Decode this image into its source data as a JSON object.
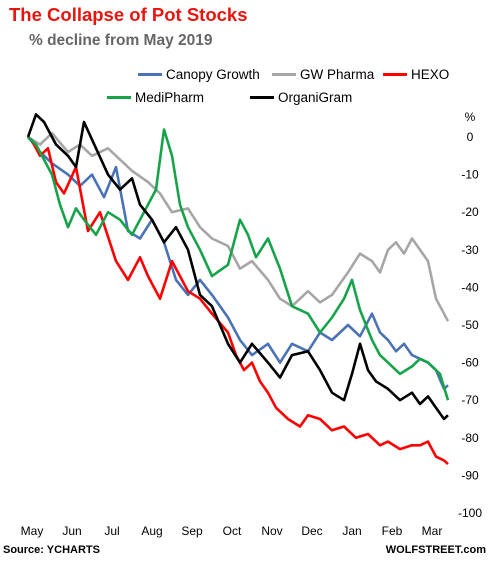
{
  "title": "The Collapse of Pot Stocks",
  "subtitle": "% decline from May 2019",
  "source": "Source: YCHARTS",
  "site": "WOLFSTREET.com",
  "y_unit_label": "%",
  "chart_data": {
    "type": "line",
    "title": "The Collapse of Pot Stocks",
    "subtitle": "% decline from May 2019",
    "xlabel": "",
    "ylabel": "%",
    "ylim": [
      -100,
      0
    ],
    "yticks": [
      0,
      -10,
      -20,
      -30,
      -40,
      -50,
      -60,
      -70,
      -80,
      -90,
      -100
    ],
    "xticks": [
      "May",
      "Jun",
      "Jul",
      "Aug",
      "Sep",
      "Oct",
      "Nov",
      "Dec",
      "Jan",
      "Feb",
      "Mar"
    ],
    "xlim": [
      0,
      10.6
    ],
    "grid": false,
    "legend_placement": "top",
    "series": [
      {
        "name": "Canopy Growth",
        "color": "#4a73b5",
        "points": [
          [
            0,
            0
          ],
          [
            0.3,
            -4
          ],
          [
            0.6,
            -7
          ],
          [
            1,
            -10
          ],
          [
            1.3,
            -13
          ],
          [
            1.6,
            -10
          ],
          [
            1.9,
            -16
          ],
          [
            2.2,
            -8
          ],
          [
            2.5,
            -25
          ],
          [
            2.8,
            -27
          ],
          [
            3.1,
            -22
          ],
          [
            3.4,
            -28
          ],
          [
            3.7,
            -38
          ],
          [
            4,
            -42
          ],
          [
            4.3,
            -38
          ],
          [
            4.6,
            -42
          ],
          [
            5,
            -48
          ],
          [
            5.3,
            -54
          ],
          [
            5.6,
            -58
          ],
          [
            6,
            -55
          ],
          [
            6.3,
            -60
          ],
          [
            6.6,
            -55
          ],
          [
            7,
            -57
          ],
          [
            7.3,
            -52
          ],
          [
            7.6,
            -54
          ],
          [
            8,
            -50
          ],
          [
            8.3,
            -53
          ],
          [
            8.6,
            -47
          ],
          [
            8.8,
            -52
          ],
          [
            9,
            -54
          ],
          [
            9.2,
            -57
          ],
          [
            9.4,
            -55
          ],
          [
            9.6,
            -58
          ],
          [
            9.8,
            -59
          ],
          [
            10,
            -60
          ],
          [
            10.2,
            -62
          ],
          [
            10.4,
            -67
          ],
          [
            10.5,
            -66
          ]
        ]
      },
      {
        "name": "GW Pharma",
        "color": "#a6a6a6",
        "points": [
          [
            0,
            0
          ],
          [
            0.3,
            -2
          ],
          [
            0.6,
            1
          ],
          [
            1,
            -4
          ],
          [
            1.3,
            -2
          ],
          [
            1.6,
            -5
          ],
          [
            2,
            -3
          ],
          [
            2.3,
            -6
          ],
          [
            2.6,
            -9
          ],
          [
            3,
            -12
          ],
          [
            3.3,
            -15
          ],
          [
            3.6,
            -20
          ],
          [
            4,
            -19
          ],
          [
            4.3,
            -24
          ],
          [
            4.6,
            -27
          ],
          [
            5,
            -29
          ],
          [
            5.3,
            -35
          ],
          [
            5.6,
            -33
          ],
          [
            6,
            -38
          ],
          [
            6.3,
            -43
          ],
          [
            6.6,
            -45
          ],
          [
            7,
            -41
          ],
          [
            7.3,
            -44
          ],
          [
            7.6,
            -42
          ],
          [
            8,
            -36
          ],
          [
            8.3,
            -31
          ],
          [
            8.6,
            -33
          ],
          [
            8.8,
            -36
          ],
          [
            9,
            -30
          ],
          [
            9.2,
            -28
          ],
          [
            9.4,
            -31
          ],
          [
            9.6,
            -27
          ],
          [
            9.8,
            -30
          ],
          [
            10,
            -33
          ],
          [
            10.2,
            -43
          ],
          [
            10.4,
            -47
          ],
          [
            10.5,
            -49
          ]
        ]
      },
      {
        "name": "HEXO",
        "color": "#ff0000",
        "points": [
          [
            0,
            0
          ],
          [
            0.1,
            -1
          ],
          [
            0.3,
            -5
          ],
          [
            0.5,
            -3
          ],
          [
            0.7,
            -12
          ],
          [
            0.9,
            -15
          ],
          [
            1.2,
            -8
          ],
          [
            1.5,
            -25
          ],
          [
            1.8,
            -20
          ],
          [
            2.2,
            -33
          ],
          [
            2.5,
            -38
          ],
          [
            2.8,
            -32
          ],
          [
            3,
            -37
          ],
          [
            3.3,
            -43
          ],
          [
            3.6,
            -33
          ],
          [
            4,
            -41
          ],
          [
            4.3,
            -43
          ],
          [
            4.6,
            -47
          ],
          [
            5,
            -52
          ],
          [
            5.2,
            -58
          ],
          [
            5.4,
            -62
          ],
          [
            5.6,
            -60
          ],
          [
            5.8,
            -65
          ],
          [
            6,
            -68
          ],
          [
            6.2,
            -72
          ],
          [
            6.5,
            -75
          ],
          [
            6.8,
            -77
          ],
          [
            7,
            -74
          ],
          [
            7.3,
            -75
          ],
          [
            7.6,
            -78
          ],
          [
            7.9,
            -77
          ],
          [
            8.2,
            -80
          ],
          [
            8.5,
            -79
          ],
          [
            8.8,
            -82
          ],
          [
            9,
            -81
          ],
          [
            9.3,
            -83
          ],
          [
            9.6,
            -82
          ],
          [
            9.8,
            -82
          ],
          [
            10,
            -81
          ],
          [
            10.2,
            -85
          ],
          [
            10.4,
            -86
          ],
          [
            10.5,
            -87
          ]
        ]
      },
      {
        "name": "MediPharm",
        "color": "#16a34a",
        "points": [
          [
            0,
            0
          ],
          [
            0.2,
            -2
          ],
          [
            0.4,
            -6
          ],
          [
            0.6,
            -10
          ],
          [
            0.8,
            -18
          ],
          [
            1,
            -24
          ],
          [
            1.2,
            -19
          ],
          [
            1.4,
            -22
          ],
          [
            1.7,
            -26
          ],
          [
            2,
            -20
          ],
          [
            2.3,
            -22
          ],
          [
            2.6,
            -26
          ],
          [
            2.9,
            -20
          ],
          [
            3.2,
            -14
          ],
          [
            3.4,
            2
          ],
          [
            3.6,
            -5
          ],
          [
            3.8,
            -18
          ],
          [
            4,
            -24
          ],
          [
            4.3,
            -30
          ],
          [
            4.6,
            -37
          ],
          [
            5,
            -34
          ],
          [
            5.3,
            -22
          ],
          [
            5.5,
            -26
          ],
          [
            5.7,
            -32
          ],
          [
            6,
            -27
          ],
          [
            6.3,
            -35
          ],
          [
            6.6,
            -45
          ],
          [
            7,
            -47
          ],
          [
            7.3,
            -52
          ],
          [
            7.6,
            -48
          ],
          [
            7.9,
            -43
          ],
          [
            8.1,
            -38
          ],
          [
            8.3,
            -46
          ],
          [
            8.6,
            -54
          ],
          [
            8.8,
            -58
          ],
          [
            9,
            -60
          ],
          [
            9.3,
            -63
          ],
          [
            9.6,
            -61
          ],
          [
            9.8,
            -59
          ],
          [
            10,
            -60
          ],
          [
            10.3,
            -63
          ],
          [
            10.5,
            -70
          ]
        ]
      },
      {
        "name": "OrganiGram",
        "color": "#000000",
        "points": [
          [
            0,
            0
          ],
          [
            0.2,
            6
          ],
          [
            0.4,
            4
          ],
          [
            0.7,
            -2
          ],
          [
            1,
            -5
          ],
          [
            1.2,
            -8
          ],
          [
            1.4,
            4
          ],
          [
            1.7,
            -3
          ],
          [
            2,
            -10
          ],
          [
            2.3,
            -14
          ],
          [
            2.6,
            -11
          ],
          [
            2.8,
            -18
          ],
          [
            3.1,
            -22
          ],
          [
            3.4,
            -28
          ],
          [
            3.7,
            -24
          ],
          [
            4,
            -30
          ],
          [
            4.3,
            -42
          ],
          [
            4.6,
            -45
          ],
          [
            5,
            -55
          ],
          [
            5.3,
            -60
          ],
          [
            5.6,
            -55
          ],
          [
            6,
            -60
          ],
          [
            6.3,
            -64
          ],
          [
            6.6,
            -58
          ],
          [
            7,
            -57
          ],
          [
            7.3,
            -62
          ],
          [
            7.6,
            -68
          ],
          [
            7.9,
            -70
          ],
          [
            8.1,
            -63
          ],
          [
            8.3,
            -55
          ],
          [
            8.5,
            -62
          ],
          [
            8.7,
            -65
          ],
          [
            9,
            -67
          ],
          [
            9.3,
            -70
          ],
          [
            9.6,
            -68
          ],
          [
            9.8,
            -71
          ],
          [
            10,
            -69
          ],
          [
            10.2,
            -72
          ],
          [
            10.4,
            -75
          ],
          [
            10.5,
            -74
          ]
        ]
      }
    ]
  }
}
